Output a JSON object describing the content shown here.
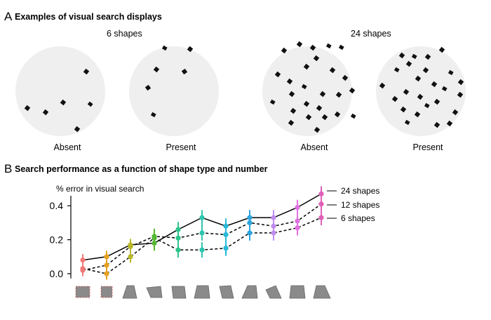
{
  "panel_a": {
    "letter": "A",
    "title": "Examples of visual search displays",
    "groups": [
      {
        "label": "6 shapes",
        "displays": [
          {
            "label": "Absent"
          },
          {
            "label": "Present"
          }
        ]
      },
      {
        "label": "24 shapes",
        "displays": [
          {
            "label": "Absent"
          },
          {
            "label": "Present"
          }
        ]
      }
    ]
  },
  "panel_b": {
    "letter": "B",
    "title": "Search performance as a function of shape type and number"
  },
  "chart_data": {
    "type": "line",
    "ylabel": "% error in visual search",
    "ylim": [
      -0.02,
      0.5
    ],
    "yticks": [
      "0.0",
      "0.2",
      "0.4"
    ],
    "ytick_values": [
      0.0,
      0.2,
      0.4
    ],
    "categories": [
      "shape 1",
      "shape 2",
      "shape 3",
      "shape 4",
      "shape 5",
      "shape 6",
      "shape 7",
      "shape 8",
      "shape 9",
      "shape 10",
      "shape 11"
    ],
    "point_colors": [
      "#f07a78",
      "#e8a020",
      "#b8b828",
      "#55b832",
      "#2ec48c",
      "#2ec4b0",
      "#28b8d8",
      "#2ea4e0",
      "#c08cf0",
      "#e070e0",
      "#e060b8"
    ],
    "series": [
      {
        "name": "24 shapes",
        "line": "solid",
        "values": [
          0.08,
          0.1,
          0.17,
          0.18,
          0.26,
          0.33,
          0.28,
          0.33,
          0.33,
          0.39,
          0.47
        ]
      },
      {
        "name": "12 shapes",
        "line": "dashed",
        "values": [
          0.02,
          0.05,
          0.16,
          0.22,
          0.21,
          0.24,
          0.23,
          0.3,
          0.28,
          0.31,
          0.41
        ]
      },
      {
        "name": "6 shapes",
        "line": "dashed",
        "values": [
          0.03,
          0.0,
          0.1,
          0.21,
          0.14,
          0.14,
          0.15,
          0.24,
          0.24,
          0.27,
          0.33
        ]
      }
    ],
    "error": [
      0.035,
      0.035,
      0.035,
      0.045,
      0.045,
      0.045,
      0.045,
      0.045,
      0.045,
      0.045,
      0.045
    ],
    "grid": false,
    "legend": "right"
  }
}
